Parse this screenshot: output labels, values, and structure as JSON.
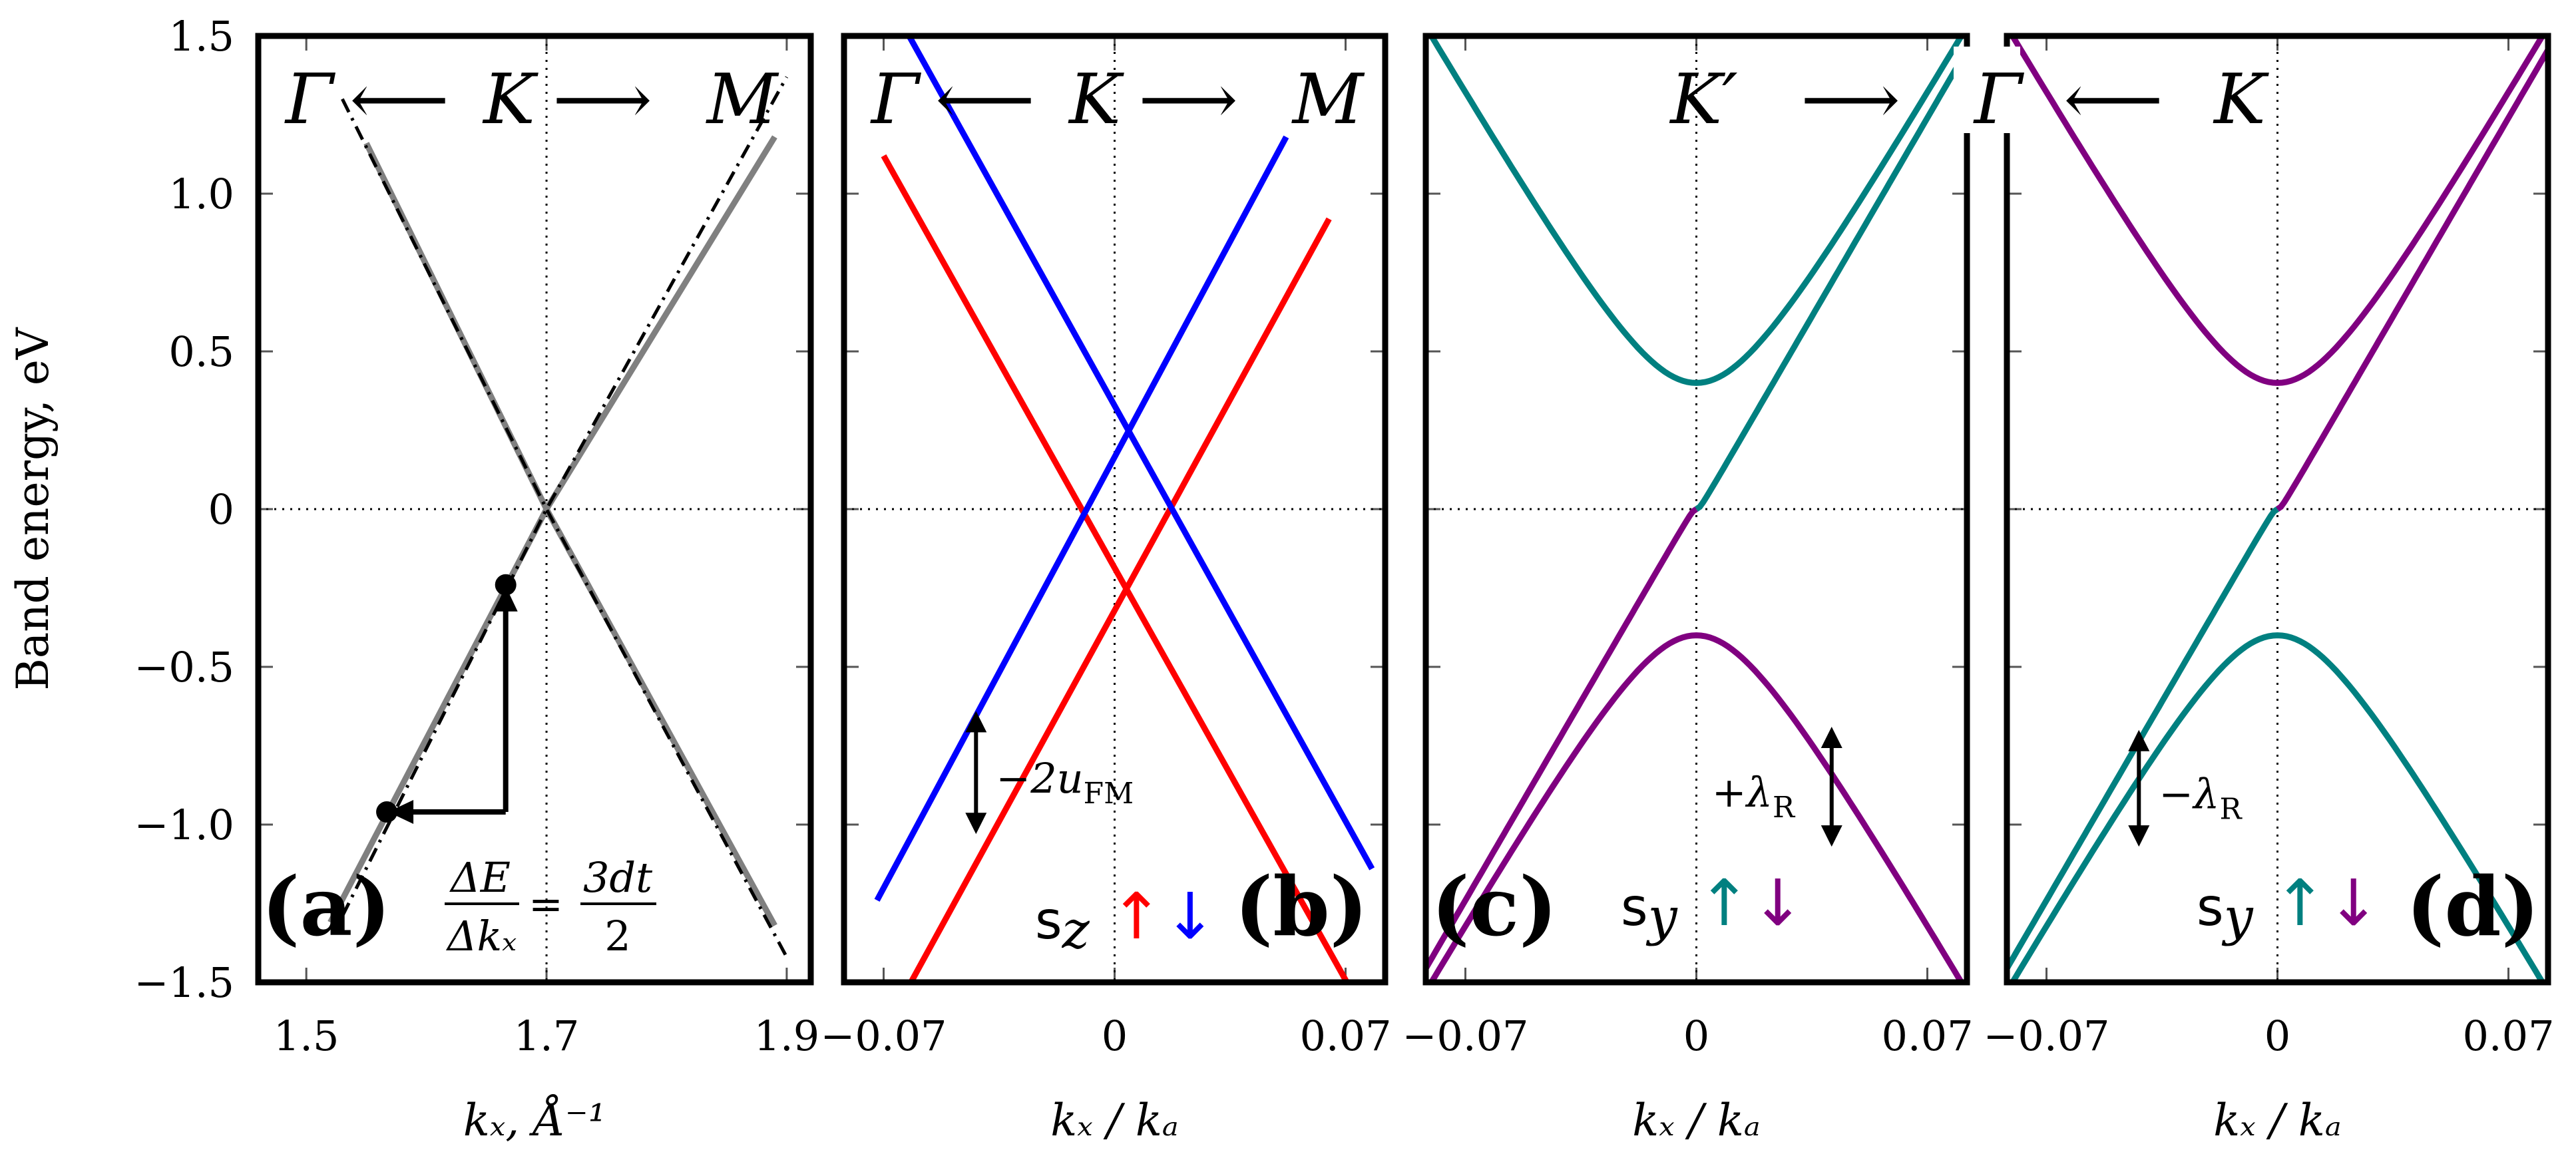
{
  "ylabel": "Band energy, eV",
  "ytick_labels": [
    "1.5",
    "1.0",
    "0.5",
    "0",
    "−0.5",
    "−1.0",
    "−1.5"
  ],
  "colors": {
    "up": "#ff0000",
    "down": "#0000ff",
    "teal": "#008080",
    "purple": "#800080",
    "gray": "#808080",
    "black": "#000000"
  },
  "chart_data": [
    {
      "type": "line",
      "panel": "(a)",
      "path_label": [
        "Γ",
        "⟵",
        "K",
        "⟶",
        "M"
      ],
      "xlabel": "kₓ, Å⁻¹",
      "xlim": [
        1.46,
        1.92
      ],
      "ylim": [
        -1.5,
        1.5
      ],
      "xticks": [
        1.5,
        1.7,
        1.9
      ],
      "xtick_labels": [
        "1.5",
        "1.7",
        "1.9"
      ],
      "series": [
        {
          "name": "tight-binding band 1",
          "style": "gray-solid",
          "x": [
            1.55,
            1.7,
            1.89
          ],
          "y": [
            1.16,
            0.0,
            -1.32
          ]
        },
        {
          "name": "tight-binding band 2",
          "style": "gray-solid",
          "x": [
            1.52,
            1.7,
            1.89
          ],
          "y": [
            -1.31,
            0.0,
            1.18
          ]
        },
        {
          "name": "linear fit 1",
          "style": "black-dashdot",
          "x": [
            1.53,
            1.7,
            1.9
          ],
          "y": [
            1.3,
            0.0,
            -1.42
          ]
        },
        {
          "name": "linear fit 2",
          "style": "black-dashdot",
          "x": [
            1.53,
            1.7,
            1.9
          ],
          "y": [
            -1.29,
            0.0,
            1.37
          ]
        }
      ],
      "points": [
        {
          "x": 1.666,
          "y": -0.24
        },
        {
          "x": 1.567,
          "y": -0.96
        }
      ],
      "annotation": {
        "delta_e": "ΔE",
        "delta_k": "Δkₓ",
        "equals": "=",
        "numer": "3dt",
        "denom": "2"
      }
    },
    {
      "type": "line",
      "panel": "(b)",
      "path_label": [
        "Γ",
        "⟵",
        "K",
        "⟶",
        "M"
      ],
      "xlabel": "kₓ / kₐ",
      "xlim": [
        -0.082,
        0.082
      ],
      "ylim": [
        -1.5,
        1.5
      ],
      "xticks": [
        -0.07,
        0,
        0.07
      ],
      "xtick_labels": [
        "−0.07",
        "0",
        "0.07"
      ],
      "series": [
        {
          "name": "spin-up 1",
          "color": "up",
          "x": [
            -0.07,
            0.072
          ],
          "y": [
            1.12,
            -1.53
          ]
        },
        {
          "name": "spin-up 2",
          "color": "up",
          "x": [
            -0.068,
            0.065
          ],
          "y": [
            -1.62,
            0.92
          ]
        },
        {
          "name": "spin-down 1",
          "color": "down",
          "x": [
            -0.066,
            0.078
          ],
          "y": [
            1.57,
            -1.14
          ]
        },
        {
          "name": "spin-down 2",
          "color": "down",
          "x": [
            -0.072,
            0.052
          ],
          "y": [
            -1.24,
            1.18
          ]
        }
      ],
      "gap_arrow": {
        "x": -0.042,
        "y1": -0.64,
        "y2": -1.03,
        "label": "−2u",
        "sub": "FM"
      },
      "spin_label": {
        "prefix": "s",
        "axis": "z",
        "up": "↑",
        "down": "↓"
      }
    },
    {
      "type": "line",
      "panel": "(c)",
      "path_label": [
        "K′",
        "⟶",
        "Γ"
      ],
      "xlabel": "kₓ / kₐ",
      "xlim": [
        -0.082,
        0.082
      ],
      "ylim": [
        -1.5,
        1.5
      ],
      "xticks": [
        -0.07,
        0,
        0.07
      ],
      "xtick_labels": [
        "−0.07",
        "0",
        "0.07"
      ],
      "series": [
        {
          "name": "upper outer",
          "color": "teal",
          "shape": "hyperbola",
          "sign": 1,
          "offset": 0.4,
          "x_range": [
            -0.082,
            0.082
          ]
        },
        {
          "name": "lower outer",
          "color": "purple",
          "shape": "hyperbola",
          "sign": -1,
          "offset": -0.4,
          "x_range": [
            -0.082,
            0.082
          ]
        },
        {
          "name": "inner (x<0)",
          "color": "purple",
          "shape": "inner",
          "side": -1,
          "x_range": [
            -0.082,
            0
          ]
        },
        {
          "name": "inner (x>0)",
          "color": "teal",
          "shape": "inner",
          "side": 1,
          "x_range": [
            0,
            0.082
          ]
        }
      ],
      "gap_arrow": {
        "x": 0.041,
        "y1": -0.69,
        "y2": -1.07,
        "label": "+λ",
        "sub": "R"
      },
      "spin_label": {
        "prefix": "s",
        "axis": "y",
        "up": "↑",
        "down": "↓"
      }
    },
    {
      "type": "line",
      "panel": "(d)",
      "path_label": [
        "⟵",
        "K"
      ],
      "xlabel": "kₓ / kₐ",
      "xlim": [
        -0.082,
        0.082
      ],
      "ylim": [
        -1.5,
        1.5
      ],
      "xticks": [
        -0.07,
        0,
        0.07
      ],
      "xtick_labels": [
        "−0.07",
        "0",
        "0.07"
      ],
      "series": [
        {
          "name": "upper outer",
          "color": "purple",
          "shape": "hyperbola",
          "sign": 1,
          "offset": 0.4,
          "x_range": [
            -0.082,
            0.082
          ]
        },
        {
          "name": "lower outer",
          "color": "teal",
          "shape": "hyperbola",
          "sign": -1,
          "offset": -0.4,
          "x_range": [
            -0.082,
            0.082
          ]
        },
        {
          "name": "inner (x<0)",
          "color": "teal",
          "shape": "inner",
          "side": -1,
          "x_range": [
            -0.082,
            0
          ]
        },
        {
          "name": "inner (x>0)",
          "color": "purple",
          "shape": "inner",
          "side": 1,
          "x_range": [
            0,
            0.082
          ]
        }
      ],
      "gap_arrow": {
        "x": -0.042,
        "y1": -0.7,
        "y2": -1.07,
        "label": "−λ",
        "sub": "R"
      },
      "spin_label": {
        "prefix": "s",
        "axis": "y",
        "up": "↑",
        "down": "↓"
      }
    }
  ]
}
